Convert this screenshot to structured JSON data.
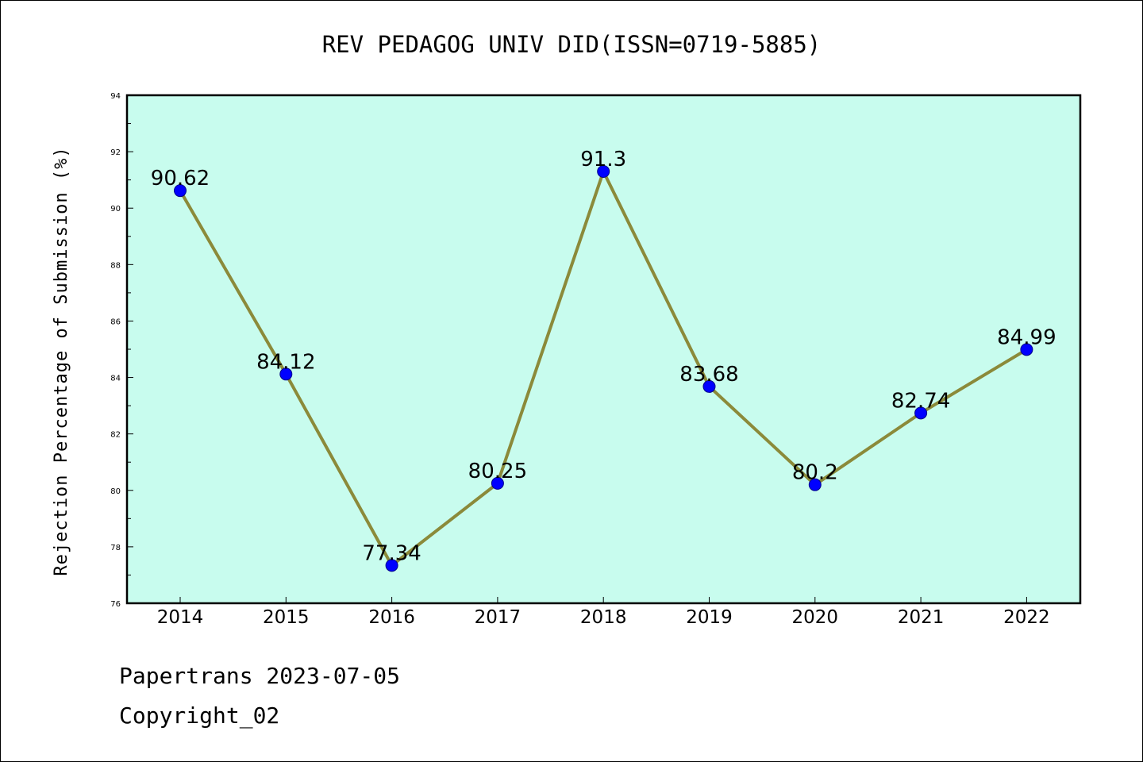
{
  "chart_data": {
    "type": "line",
    "title": "REV PEDAGOG UNIV DID(ISSN=0719-5885)",
    "xlabel": "",
    "ylabel": "Rejection Percentage of Submission (%)",
    "categories": [
      "2014",
      "2015",
      "2016",
      "2017",
      "2018",
      "2019",
      "2020",
      "2021",
      "2022"
    ],
    "series": [
      {
        "values": [
          90.62,
          84.12,
          77.34,
          80.25,
          91.3,
          83.68,
          80.2,
          82.74,
          84.99
        ]
      }
    ],
    "data_labels": [
      "90.62",
      "84.12",
      "77.34",
      "80.25",
      "91.3",
      "83.68",
      "80.2",
      "82.74",
      "84.99"
    ],
    "ylim": [
      76,
      94
    ],
    "yticks": [
      "76",
      "78",
      "80",
      "82",
      "84",
      "86",
      "88",
      "90",
      "92",
      "94"
    ],
    "grid": false,
    "colors": {
      "plot_background": "#c8fcee",
      "line": "#8b8a3a",
      "marker": "#0000ff"
    }
  },
  "footer": {
    "line1": "Papertrans 2023-07-05",
    "line2": "Copyright_02"
  }
}
